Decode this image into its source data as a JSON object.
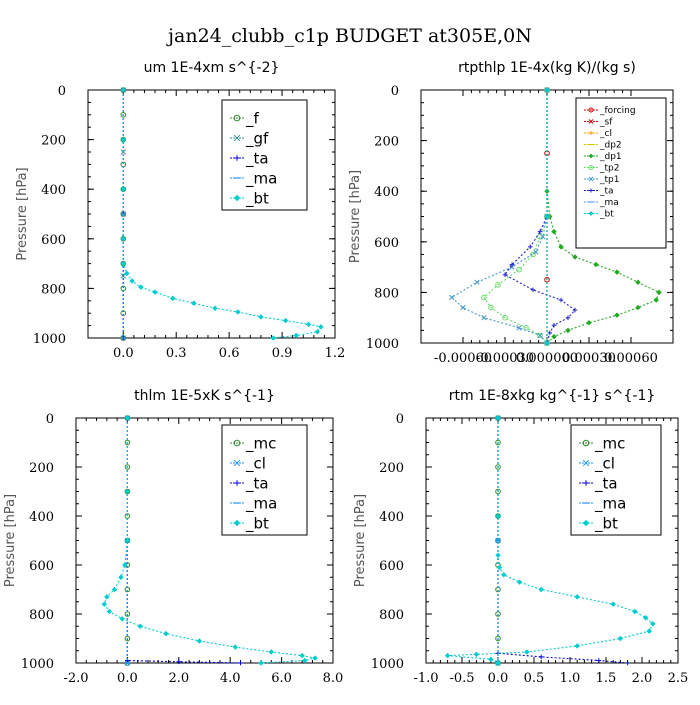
{
  "figure_title": "jan24_clubb_c1p  BUDGET at305E,0N",
  "chart_data": [
    {
      "type": "line",
      "title": "um  1E-4xm s^{-2}",
      "ylabel": "Pressure [hPa]",
      "xlim": [
        -0.2,
        1.2
      ],
      "ylim": [
        1000,
        0
      ],
      "xticks": [
        0.0,
        0.3,
        0.6,
        0.9,
        1.2
      ],
      "xtick_labels": [
        "0.0",
        "0.3",
        "0.6",
        "0.9",
        "1.2"
      ],
      "yticks": [
        0,
        200,
        400,
        600,
        800,
        1000
      ],
      "legend": "top-right",
      "series": [
        {
          "name": "_f",
          "color": "#2e8b2e",
          "points": [
            [
              0.0,
              0
            ],
            [
              0.0,
              100
            ],
            [
              0.0,
              200
            ],
            [
              0.0,
              300
            ],
            [
              0.0,
              400
            ],
            [
              0.0,
              500
            ],
            [
              0.0,
              600
            ],
            [
              0.0,
              700
            ],
            [
              0.0,
              800
            ],
            [
              0.0,
              900
            ],
            [
              0.0,
              1000
            ]
          ]
        },
        {
          "name": "_gf",
          "color": "#2e8b8b",
          "points": [
            [
              0.0,
              0
            ],
            [
              0.0,
              250
            ],
            [
              0.0,
              500
            ],
            [
              0.0,
              750
            ],
            [
              0.0,
              1000
            ]
          ]
        },
        {
          "name": "_ta",
          "color": "#0000dd",
          "points": [
            [
              0.0,
              0
            ],
            [
              0.0,
              500
            ],
            [
              0.0,
              1000
            ]
          ]
        },
        {
          "name": "_ma",
          "color": "#1e90ff",
          "points": [
            [
              0.0,
              0
            ],
            [
              0.0,
              500
            ],
            [
              0.0,
              1000
            ]
          ]
        },
        {
          "name": "_bt",
          "color": "#00cccc",
          "points": [
            [
              0.0,
              0
            ],
            [
              0.0,
              200
            ],
            [
              0.0,
              400
            ],
            [
              0.0,
              600
            ],
            [
              0.0,
              700
            ],
            [
              0.02,
              740
            ],
            [
              0.05,
              770
            ],
            [
              0.1,
              795
            ],
            [
              0.18,
              815
            ],
            [
              0.28,
              840
            ],
            [
              0.4,
              860
            ],
            [
              0.52,
              880
            ],
            [
              0.65,
              895
            ],
            [
              0.78,
              915
            ],
            [
              0.92,
              930
            ],
            [
              1.05,
              945
            ],
            [
              1.12,
              955
            ],
            [
              1.1,
              975
            ],
            [
              0.98,
              990
            ],
            [
              0.85,
              1000
            ]
          ]
        }
      ]
    },
    {
      "type": "line",
      "title": "rtpthlp  1E-4x(kg K)/(kg s)",
      "ylabel": "Pressure [hPa]",
      "xlim": [
        -0.0009,
        0.0009
      ],
      "ylim": [
        1000,
        0
      ],
      "xticks": [
        -0.0006,
        -0.0003,
        0.0,
        0.0003,
        0.0006
      ],
      "xtick_labels": [
        "-0.00060",
        "-0.00030",
        "0.000000",
        "0.00030",
        "0.00060"
      ],
      "yticks": [
        0,
        200,
        400,
        600,
        800,
        1000
      ],
      "legend": "top-right",
      "series": [
        {
          "name": "_forcing",
          "color": "#cc0000",
          "points": [
            [
              0.0,
              0
            ],
            [
              0.0,
              250
            ],
            [
              0.0,
              500
            ],
            [
              0.0,
              750
            ],
            [
              0.0,
              1000
            ]
          ]
        },
        {
          "name": "_sf",
          "color": "#cc0000",
          "points": [
            [
              0.0,
              0
            ],
            [
              0.0,
              500
            ],
            [
              0.0,
              1000
            ]
          ]
        },
        {
          "name": "_cl",
          "color": "#ff9900",
          "points": [
            [
              0.0,
              0
            ],
            [
              0.0,
              500
            ],
            [
              0.0,
              1000
            ]
          ]
        },
        {
          "name": "_dp2",
          "color": "#cccc00",
          "points": [
            [
              0.0,
              0
            ],
            [
              0.0,
              500
            ],
            [
              0.0,
              1000
            ]
          ]
        },
        {
          "name": "_dp1",
          "color": "#22aa22",
          "points": [
            [
              0.0,
              0
            ],
            [
              0.0,
              400
            ],
            [
              2e-05,
              500
            ],
            [
              5e-05,
              560
            ],
            [
              0.0001,
              620
            ],
            [
              0.0002,
              660
            ],
            [
              0.00035,
              690
            ],
            [
              0.0005,
              720
            ],
            [
              0.00065,
              760
            ],
            [
              0.0008,
              800
            ],
            [
              0.00078,
              830
            ],
            [
              0.00065,
              860
            ],
            [
              0.0005,
              890
            ],
            [
              0.0003,
              920
            ],
            [
              0.00015,
              950
            ],
            [
              5e-05,
              975
            ],
            [
              0.0,
              1000
            ]
          ]
        },
        {
          "name": "_tp2",
          "color": "#66dd66",
          "points": [
            [
              0.0,
              0
            ],
            [
              0.0,
              500
            ],
            [
              -5e-05,
              580
            ],
            [
              -0.0001,
              650
            ],
            [
              -0.0002,
              710
            ],
            [
              -0.00035,
              770
            ],
            [
              -0.00045,
              820
            ],
            [
              -0.0004,
              860
            ],
            [
              -0.0003,
              900
            ],
            [
              -0.00015,
              940
            ],
            [
              -5e-05,
              970
            ],
            [
              0.0,
              1000
            ]
          ]
        },
        {
          "name": "_tp1",
          "color": "#4499cc",
          "points": [
            [
              0.0,
              0
            ],
            [
              0.0,
              500
            ],
            [
              -3e-05,
              580
            ],
            [
              -8e-05,
              640
            ],
            [
              -0.00025,
              700
            ],
            [
              -0.0005,
              760
            ],
            [
              -0.00068,
              820
            ],
            [
              -0.0006,
              860
            ],
            [
              -0.00045,
              900
            ],
            [
              -0.0002,
              940
            ],
            [
              -5e-05,
              970
            ],
            [
              0.0,
              1000
            ]
          ]
        },
        {
          "name": "_ta",
          "color": "#2222cc",
          "points": [
            [
              0.0,
              0
            ],
            [
              0.0,
              500
            ],
            [
              -5e-05,
              560
            ],
            [
              -0.00012,
              620
            ],
            [
              -0.00025,
              690
            ],
            [
              -0.0003,
              730
            ],
            [
              -0.0001,
              790
            ],
            [
              0.0001,
              830
            ],
            [
              0.0002,
              870
            ],
            [
              0.00015,
              900
            ],
            [
              5e-05,
              930
            ],
            [
              2e-05,
              960
            ],
            [
              0.0,
              1000
            ]
          ]
        },
        {
          "name": "_ma",
          "color": "#5599ff",
          "points": [
            [
              0.0,
              0
            ],
            [
              0.0,
              500
            ],
            [
              0.0,
              1000
            ]
          ]
        },
        {
          "name": "_bt",
          "color": "#00cccc",
          "points": [
            [
              0.0,
              0
            ],
            [
              0.0,
              500
            ],
            [
              0.0,
              1000
            ]
          ]
        }
      ]
    },
    {
      "type": "line",
      "title": "thlm  1E-5xK s^{-1}",
      "ylabel": "Pressure [hPa]",
      "xlim": [
        -2.0,
        8.0
      ],
      "ylim": [
        1000,
        0
      ],
      "xticks": [
        -2,
        0,
        2,
        4,
        6,
        8
      ],
      "xtick_labels": [
        "-2.0",
        "0.0",
        "2.0",
        "4.0",
        "6.0",
        "8.0"
      ],
      "yticks": [
        0,
        200,
        400,
        600,
        800,
        1000
      ],
      "legend": "top-right",
      "series": [
        {
          "name": "_mc",
          "color": "#2e8b2e",
          "points": [
            [
              0.0,
              0
            ],
            [
              0.0,
              100
            ],
            [
              0.0,
              200
            ],
            [
              0.0,
              300
            ],
            [
              0.0,
              400
            ],
            [
              0.0,
              500
            ],
            [
              0.0,
              600
            ],
            [
              0.0,
              700
            ],
            [
              0.0,
              800
            ],
            [
              0.0,
              900
            ],
            [
              0.0,
              1000
            ]
          ]
        },
        {
          "name": "_cl",
          "color": "#1e90ff",
          "points": [
            [
              0.0,
              0
            ],
            [
              0.0,
              500
            ],
            [
              0.0,
              1000
            ]
          ]
        },
        {
          "name": "_ta",
          "color": "#0000dd",
          "points": [
            [
              0.0,
              0
            ],
            [
              0.0,
              990
            ],
            [
              2.0,
              995
            ],
            [
              4.4,
              1000
            ]
          ]
        },
        {
          "name": "_ma",
          "color": "#1e90ff",
          "points": [
            [
              0.0,
              0
            ],
            [
              0.0,
              500
            ],
            [
              0.0,
              1000
            ]
          ]
        },
        {
          "name": "_bt",
          "color": "#00cccc",
          "points": [
            [
              0.0,
              0
            ],
            [
              0.0,
              300
            ],
            [
              0.0,
              500
            ],
            [
              -0.1,
              600
            ],
            [
              -0.25,
              650
            ],
            [
              -0.5,
              700
            ],
            [
              -0.8,
              730
            ],
            [
              -0.9,
              760
            ],
            [
              -0.7,
              790
            ],
            [
              -0.2,
              820
            ],
            [
              0.5,
              850
            ],
            [
              1.5,
              880
            ],
            [
              2.8,
              910
            ],
            [
              4.2,
              935
            ],
            [
              5.6,
              955
            ],
            [
              6.8,
              970
            ],
            [
              7.3,
              980
            ],
            [
              6.9,
              990
            ],
            [
              5.2,
              1000
            ]
          ]
        }
      ]
    },
    {
      "type": "line",
      "title": "rtm  1E-8xkg kg^{-1} s^{-1}",
      "ylabel": "Pressure [hPa]",
      "xlim": [
        -1.0,
        2.5
      ],
      "ylim": [
        1000,
        0
      ],
      "xticks": [
        -1.0,
        -0.5,
        0.0,
        0.5,
        1.0,
        1.5,
        2.0,
        2.5
      ],
      "xtick_labels": [
        "-1.0",
        "-0.5",
        "0.0",
        "0.5",
        "1.0",
        "1.5",
        "2.0",
        "2.5"
      ],
      "yticks": [
        0,
        200,
        400,
        600,
        800,
        1000
      ],
      "legend": "top-right",
      "series": [
        {
          "name": "_mc",
          "color": "#2e8b2e",
          "points": [
            [
              0.0,
              0
            ],
            [
              0.0,
              100
            ],
            [
              0.0,
              200
            ],
            [
              0.0,
              300
            ],
            [
              0.0,
              400
            ],
            [
              0.0,
              500
            ],
            [
              0.0,
              600
            ],
            [
              0.0,
              700
            ],
            [
              0.0,
              800
            ],
            [
              0.0,
              900
            ],
            [
              0.0,
              1000
            ]
          ]
        },
        {
          "name": "_cl",
          "color": "#1e90ff",
          "points": [
            [
              0.0,
              0
            ],
            [
              0.0,
              500
            ],
            [
              0.0,
              1000
            ]
          ]
        },
        {
          "name": "_ta",
          "color": "#0000dd",
          "points": [
            [
              0.0,
              0
            ],
            [
              0.0,
              960
            ],
            [
              0.6,
              975
            ],
            [
              1.4,
              990
            ],
            [
              1.8,
              1000
            ]
          ]
        },
        {
          "name": "_ma",
          "color": "#1e90ff",
          "points": [
            [
              0.0,
              0
            ],
            [
              0.0,
              500
            ],
            [
              0.0,
              1000
            ]
          ]
        },
        {
          "name": "_bt",
          "color": "#00cccc",
          "points": [
            [
              0.0,
              0
            ],
            [
              0.0,
              400
            ],
            [
              0.0,
              560
            ],
            [
              0.02,
              610
            ],
            [
              0.08,
              640
            ],
            [
              0.3,
              670
            ],
            [
              0.6,
              700
            ],
            [
              1.1,
              730
            ],
            [
              1.6,
              760
            ],
            [
              1.9,
              790
            ],
            [
              2.05,
              815
            ],
            [
              2.15,
              840
            ],
            [
              2.1,
              870
            ],
            [
              1.7,
              900
            ],
            [
              1.1,
              930
            ],
            [
              0.4,
              955
            ],
            [
              -0.3,
              965
            ],
            [
              -0.7,
              970
            ],
            [
              -0.1,
              985
            ],
            [
              0.0,
              1000
            ]
          ]
        }
      ]
    }
  ]
}
